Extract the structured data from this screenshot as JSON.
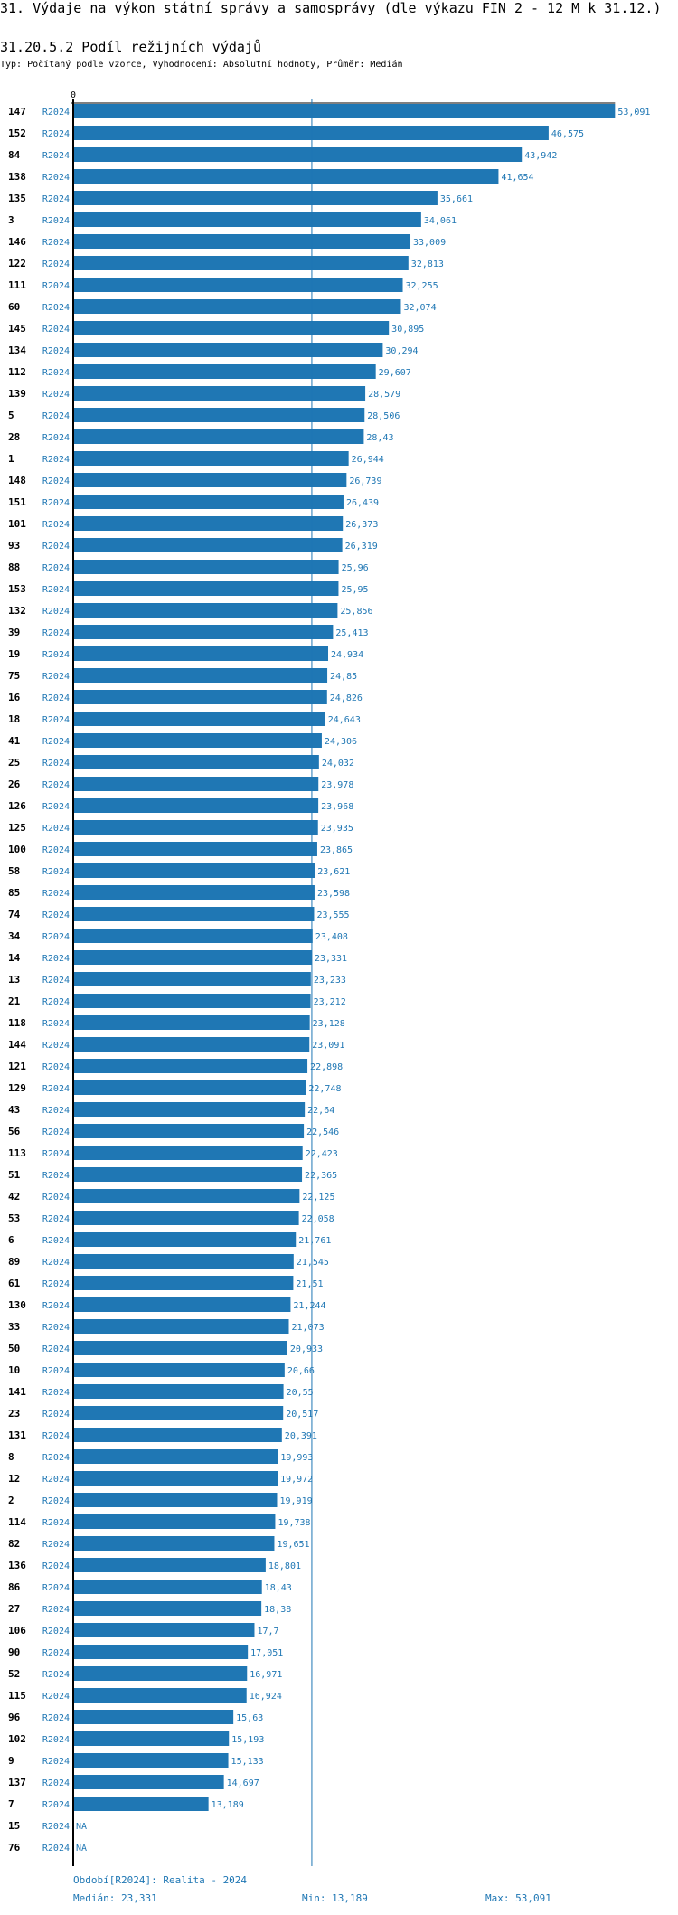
{
  "title": "31. Výdaje na výkon státní správy a samosprávy (dle výkazu FIN 2 - 12 M k 31.12.)",
  "subtitle": "31.20.5.2 Podíl režijních výdajů",
  "description": "Typ: Počítaný podle vzorce, Vyhodnocení: Absolutní hodnoty, Průměr: Medián",
  "colors": {
    "bar": "#1f77b4",
    "label": "#1f77b4",
    "axis": "#000000",
    "median_line": "#1f77b4"
  },
  "chart_data": {
    "type": "bar",
    "orientation": "horizontal",
    "x_tick_labels": [
      "0"
    ],
    "xlim": [
      0,
      53.091
    ],
    "grid": false,
    "series_label": "R2024",
    "categories": [
      "147",
      "152",
      "84",
      "138",
      "135",
      "3",
      "146",
      "122",
      "111",
      "60",
      "145",
      "134",
      "112",
      "139",
      "5",
      "28",
      "1",
      "148",
      "151",
      "101",
      "93",
      "88",
      "153",
      "132",
      "39",
      "19",
      "75",
      "16",
      "18",
      "41",
      "25",
      "26",
      "126",
      "125",
      "100",
      "58",
      "85",
      "74",
      "34",
      "14",
      "13",
      "21",
      "118",
      "144",
      "121",
      "129",
      "43",
      "56",
      "113",
      "51",
      "42",
      "53",
      "6",
      "89",
      "61",
      "130",
      "33",
      "50",
      "10",
      "141",
      "23",
      "131",
      "8",
      "12",
      "2",
      "114",
      "82",
      "136",
      "86",
      "27",
      "106",
      "90",
      "52",
      "115",
      "96",
      "102",
      "9",
      "137",
      "7",
      "15",
      "76"
    ],
    "values": [
      53.091,
      46.575,
      43.942,
      41.654,
      35.661,
      34.061,
      33.009,
      32.813,
      32.255,
      32.074,
      30.895,
      30.294,
      29.607,
      28.579,
      28.506,
      28.43,
      26.944,
      26.739,
      26.439,
      26.373,
      26.319,
      25.96,
      25.95,
      25.856,
      25.413,
      24.934,
      24.85,
      24.826,
      24.643,
      24.306,
      24.032,
      23.978,
      23.968,
      23.935,
      23.865,
      23.621,
      23.598,
      23.555,
      23.408,
      23.331,
      23.233,
      23.212,
      23.128,
      23.091,
      22.898,
      22.748,
      22.64,
      22.546,
      22.423,
      22.365,
      22.125,
      22.058,
      21.761,
      21.545,
      21.51,
      21.244,
      21.073,
      20.933,
      20.66,
      20.55,
      20.517,
      20.391,
      19.993,
      19.972,
      19.919,
      19.738,
      19.651,
      18.801,
      18.43,
      18.38,
      17.7,
      17.051,
      16.971,
      16.924,
      15.63,
      15.193,
      15.133,
      14.697,
      13.189,
      null,
      null
    ],
    "na_label": "NA",
    "reference_line": {
      "name": "Medián",
      "value": 23.331
    }
  },
  "footer": {
    "period": "Období[R2024]: Realita - 2024",
    "median": "Medián: 23,331",
    "min": "Min: 13,189",
    "max": "Max: 53,091"
  }
}
